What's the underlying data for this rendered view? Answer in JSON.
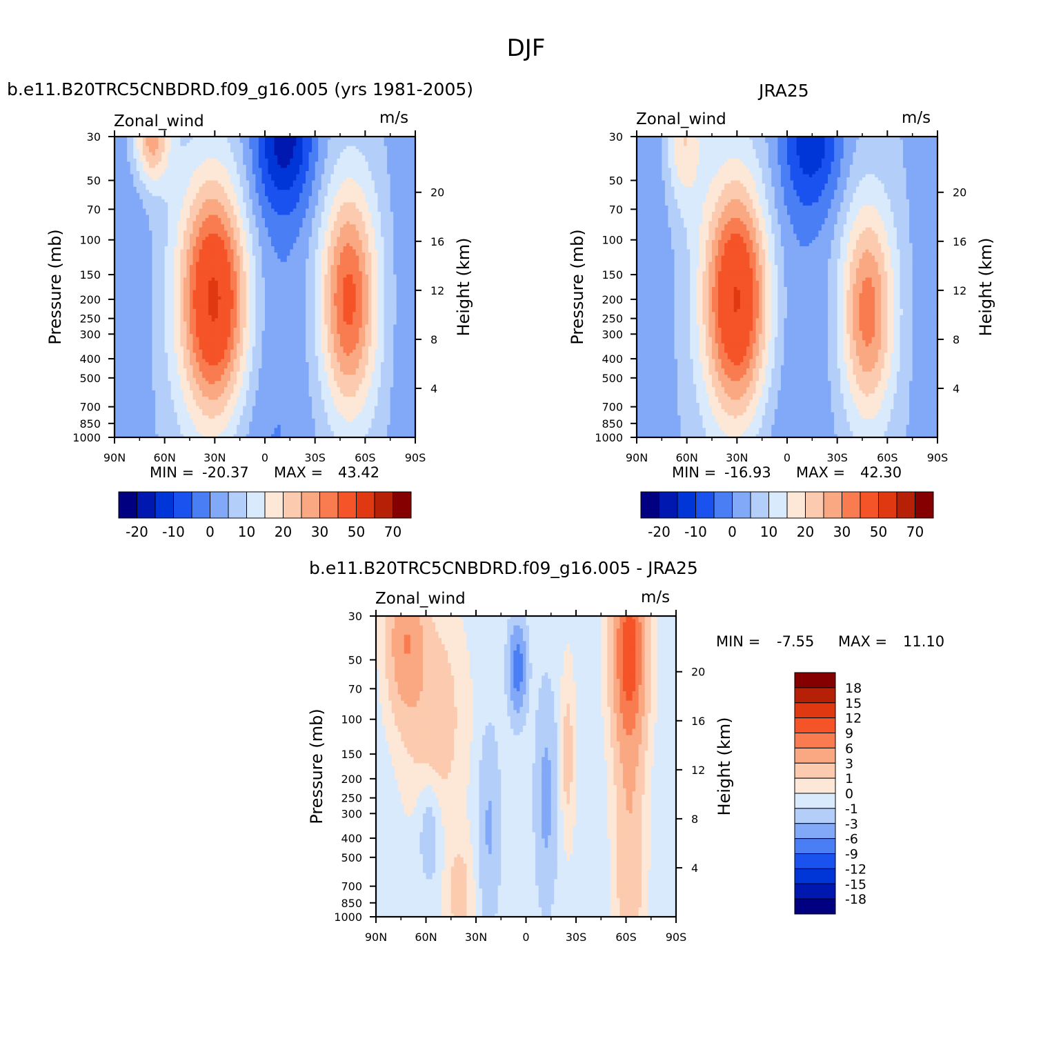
{
  "figure_title": "DJF",
  "colors": {
    "blue_ramp": [
      "#000080",
      "#0018b0",
      "#0036d8",
      "#1a52f0",
      "#4a7ef5",
      "#82a8f8",
      "#b4cefa",
      "#d8eafc"
    ],
    "red_ramp": [
      "#fde8d8",
      "#fccbaf",
      "#faa882",
      "#f87c50",
      "#f55328",
      "#e03810",
      "#b52006",
      "#850000"
    ],
    "missing": "#ffffff"
  },
  "panels": [
    {
      "title": "b.e11.B20TRC5CNBDRD.f09_g16.005 (yrs 1981-2005)",
      "variable": "Zonal_wind",
      "units": "m/s",
      "ylabel": "Pressure (mb)",
      "ylabel_right": "Height (km)",
      "min_label": "MIN =",
      "min_value": "-20.37",
      "max_label": "MAX =",
      "max_value": "43.42"
    },
    {
      "title": "JRA25",
      "variable": "Zonal_wind",
      "units": "m/s",
      "ylabel": "Pressure (mb)",
      "ylabel_right": "Height (km)",
      "min_label": "MIN =",
      "min_value": "-16.93",
      "max_label": "MAX =",
      "max_value": "42.30"
    },
    {
      "title": "b.e11.B20TRC5CNBDRD.f09_g16.005 - JRA25",
      "variable": "Zonal_wind",
      "units": "m/s",
      "ylabel": "Pressure (mb)",
      "ylabel_right": "Height (km)",
      "min_label": "MIN =",
      "min_value": "-7.55",
      "max_label": "MAX =",
      "max_value": "11.10"
    }
  ],
  "axes": {
    "x_ticks": [
      {
        "lat": 90,
        "label": "90N"
      },
      {
        "lat": 60,
        "label": "60N"
      },
      {
        "lat": 30,
        "label": "30N"
      },
      {
        "lat": 0,
        "label": "0"
      },
      {
        "lat": -30,
        "label": "30S"
      },
      {
        "lat": -60,
        "label": "60S"
      },
      {
        "lat": -90,
        "label": "90S"
      }
    ],
    "p_ticks": [
      30,
      50,
      70,
      100,
      150,
      200,
      250,
      300,
      400,
      500,
      700,
      850,
      1000
    ],
    "p_range": [
      30,
      1000
    ],
    "y_scale": "log",
    "height_ticks_km": [
      4,
      8,
      12,
      16,
      20
    ]
  },
  "colorbar_field": {
    "orientation": "horizontal",
    "levels": [
      -25,
      -20,
      -15,
      -10,
      -5,
      0,
      5,
      10,
      15,
      20,
      25,
      30,
      40,
      50,
      60,
      70
    ],
    "labels": [
      "-20",
      "-10",
      "0",
      "10",
      "20",
      "30",
      "50",
      "70"
    ]
  },
  "colorbar_diff": {
    "orientation": "vertical",
    "labels": [
      "18",
      "15",
      "12",
      "9",
      "6",
      "3",
      "1",
      "0",
      "-1",
      "-3",
      "-6",
      "-9",
      "-12",
      "-15",
      "-18"
    ]
  },
  "chart_data": [
    {
      "type": "heatmap",
      "title": "b.e11.B20TRC5CNBDRD.f09_g16.005 (yrs 1981-2005)",
      "subtitle": "Zonal_wind",
      "xlabel": "",
      "ylabel": "Pressure (mb)",
      "xlim": [
        90,
        -90
      ],
      "ylim": [
        30,
        1000
      ],
      "jets": [
        {
          "lat": 30,
          "p": 200,
          "value": 43.42,
          "width_lat": 21,
          "depth_decades": 0.62
        },
        {
          "lat": -50,
          "p": 200,
          "value": 32,
          "width_lat": 17,
          "depth_decades": 0.58
        },
        {
          "lat": 68,
          "p": 30,
          "value": 24,
          "width_lat": 11,
          "depth_decades": 0.24
        }
      ],
      "easterly_min": {
        "lat": -12,
        "p": 30,
        "value": -20.37
      },
      "easterly_level": -6
    },
    {
      "type": "heatmap",
      "title": "JRA25",
      "subtitle": "Zonal_wind",
      "xlabel": "",
      "ylabel": "Pressure (mb)",
      "xlim": [
        90,
        -90
      ],
      "ylim": [
        30,
        1000
      ],
      "jets": [
        {
          "lat": 30,
          "p": 200,
          "value": 42.3,
          "width_lat": 20,
          "depth_decades": 0.62
        },
        {
          "lat": -48,
          "p": 230,
          "value": 28,
          "width_lat": 16,
          "depth_decades": 0.55
        },
        {
          "lat": 62,
          "p": 30,
          "value": 15,
          "width_lat": 11,
          "depth_decades": 0.35
        }
      ],
      "easterly_min": {
        "lat": -15,
        "p": 30,
        "value": -16.93
      },
      "easterly_level": -5
    },
    {
      "type": "heatmap",
      "title": "b.e11.B20TRC5CNBDRD.f09_g16.005 - JRA25",
      "subtitle": "Zonal_wind",
      "xlabel": "",
      "ylabel": "Pressure (mb)",
      "xlim": [
        90,
        -90
      ],
      "ylim": [
        30,
        1000
      ],
      "blobs": [
        {
          "lat": -62,
          "p": 45,
          "value": 11.1,
          "width_lat": 9,
          "depth_decades": 0.45
        },
        {
          "lat": -62,
          "p": 400,
          "value": 3,
          "width_lat": 8,
          "depth_decades": 0.8
        },
        {
          "lat": 72,
          "p": 40,
          "value": 6,
          "width_lat": 10,
          "depth_decades": 0.35
        },
        {
          "lat": 55,
          "p": 100,
          "value": 2.5,
          "width_lat": 16,
          "depth_decades": 0.5
        },
        {
          "lat": 5,
          "p": 55,
          "value": -7.55,
          "width_lat": 5,
          "depth_decades": 0.22
        },
        {
          "lat": -12,
          "p": 250,
          "value": -3.5,
          "width_lat": 6,
          "depth_decades": 0.5
        },
        {
          "lat": 22,
          "p": 350,
          "value": -3,
          "width_lat": 6,
          "depth_decades": 0.45
        },
        {
          "lat": 58,
          "p": 350,
          "value": -2,
          "width_lat": 7,
          "depth_decades": 0.3
        },
        {
          "lat": -25,
          "p": 150,
          "value": 2,
          "width_lat": 4,
          "depth_decades": 0.4
        },
        {
          "lat": 40,
          "p": 750,
          "value": 2,
          "width_lat": 8,
          "depth_decades": 0.25
        }
      ]
    }
  ]
}
